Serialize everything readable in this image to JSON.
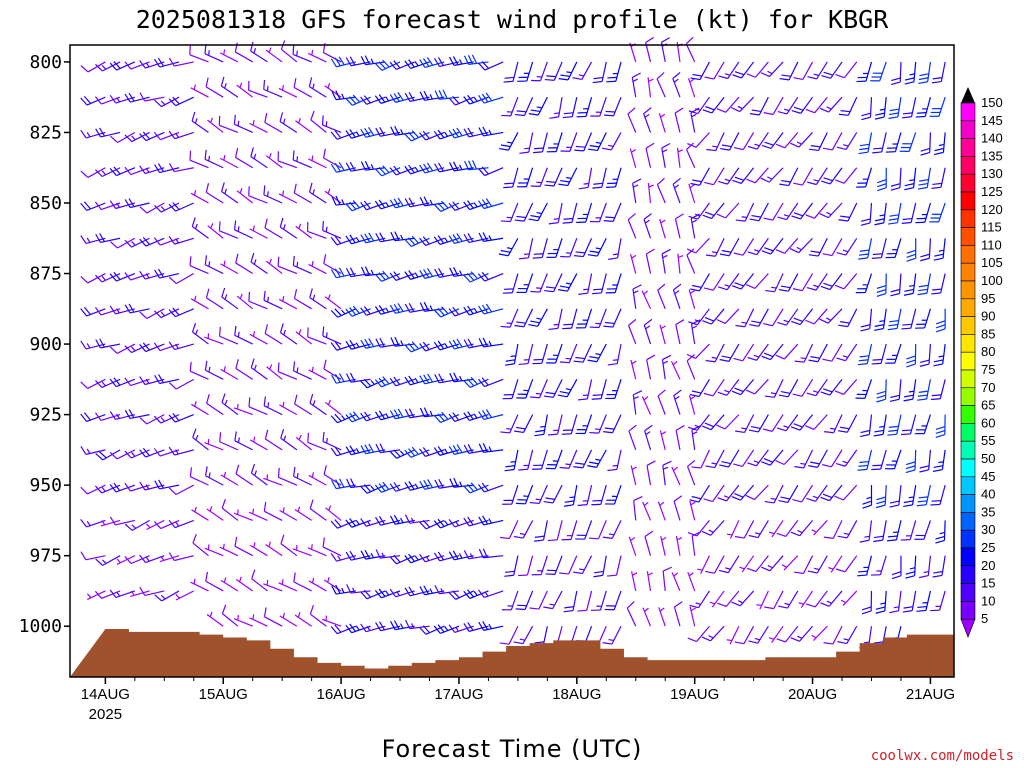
{
  "chart_data": {
    "type": "wind-barb profile",
    "title": "2025081318 GFS forecast wind profile (kt) for KBGR",
    "xlabel": "Forecast Time (UTC)",
    "ylabel": "",
    "credit": "coolwx.com/models",
    "y_axis": {
      "scale": "pressure (hPa), inverted",
      "ylim": [
        1018,
        794
      ],
      "ticks": [
        "800",
        "825",
        "850",
        "875",
        "900",
        "925",
        "950",
        "975",
        "1000"
      ]
    },
    "x_axis": {
      "range_hours": [
        -0.3,
        7.2
      ],
      "ticks": [
        {
          "day": 0,
          "label": "14AUG",
          "sublabel": "2025"
        },
        {
          "day": 1,
          "label": "15AUG",
          "sublabel": ""
        },
        {
          "day": 2,
          "label": "16AUG",
          "sublabel": ""
        },
        {
          "day": 3,
          "label": "17AUG",
          "sublabel": ""
        },
        {
          "day": 4,
          "label": "18AUG",
          "sublabel": ""
        },
        {
          "day": 5,
          "label": "19AUG",
          "sublabel": ""
        },
        {
          "day": 6,
          "label": "20AUG",
          "sublabel": ""
        },
        {
          "day": 7,
          "label": "21AUG",
          "sublabel": ""
        }
      ]
    },
    "colorbar": {
      "unit": "kt",
      "levels": [
        "150",
        "145",
        "140",
        "135",
        "130",
        "125",
        "120",
        "115",
        "110",
        "105",
        "100",
        "95",
        "90",
        "85",
        "80",
        "75",
        "70",
        "65",
        "60",
        "55",
        "50",
        "45",
        "40",
        "35",
        "30",
        "25",
        "20",
        "15",
        "10",
        "5"
      ],
      "colors": [
        "#ff00ff",
        "#f000c8",
        "#ff0096",
        "#ff0064",
        "#ff0032",
        "#ff0000",
        "#ff3200",
        "#ff5000",
        "#ff6e00",
        "#ff8200",
        "#ff9600",
        "#ffaa00",
        "#ffc800",
        "#ffe600",
        "#ffff00",
        "#d2ff00",
        "#96ff00",
        "#32ff00",
        "#00ff64",
        "#00ffb4",
        "#00ffff",
        "#00c8ff",
        "#0096ff",
        "#0064ff",
        "#0032ff",
        "#0000ff",
        "#2800ff",
        "#5000ff",
        "#7800ff",
        "#a000ff"
      ]
    },
    "surface_pressure_hpa": [
      [
        0.0,
        1001
      ],
      [
        0.2,
        1002
      ],
      [
        0.6,
        1002
      ],
      [
        0.8,
        1003
      ],
      [
        1.0,
        1004
      ],
      [
        1.2,
        1005
      ],
      [
        1.4,
        1008
      ],
      [
        1.6,
        1011
      ],
      [
        1.8,
        1013
      ],
      [
        2.0,
        1014
      ],
      [
        2.2,
        1015
      ],
      [
        2.4,
        1014
      ],
      [
        2.6,
        1013
      ],
      [
        2.8,
        1012
      ],
      [
        3.0,
        1011
      ],
      [
        3.2,
        1009
      ],
      [
        3.4,
        1007
      ],
      [
        3.6,
        1006
      ],
      [
        3.8,
        1005
      ],
      [
        4.0,
        1005
      ],
      [
        4.2,
        1008
      ],
      [
        4.4,
        1011
      ],
      [
        4.6,
        1012
      ],
      [
        4.8,
        1012
      ],
      [
        5.0,
        1012
      ],
      [
        5.2,
        1012
      ],
      [
        5.4,
        1012
      ],
      [
        5.6,
        1011
      ],
      [
        5.8,
        1011
      ],
      [
        6.0,
        1011
      ],
      [
        6.2,
        1009
      ],
      [
        6.4,
        1006
      ],
      [
        6.6,
        1004
      ],
      [
        6.8,
        1003
      ],
      [
        7.0,
        1003
      ],
      [
        7.2,
        1003
      ]
    ],
    "wind_regimes": [
      {
        "day_range": [
          0.0,
          0.8
        ],
        "direction_deg": 250,
        "speed_kt": 15
      },
      {
        "day_range": [
          0.8,
          2.1
        ],
        "direction_deg": 300,
        "speed_kt": 10
      },
      {
        "day_range": [
          2.1,
          3.5
        ],
        "direction_deg": 255,
        "speed_kt": 25
      },
      {
        "day_range": [
          3.5,
          4.5
        ],
        "direction_deg": 200,
        "speed_kt": 20
      },
      {
        "day_range": [
          4.5,
          5.1
        ],
        "direction_deg": 345,
        "speed_kt": 10
      },
      {
        "day_range": [
          5.1,
          6.5
        ],
        "direction_deg": 215,
        "speed_kt": 15
      },
      {
        "day_range": [
          6.5,
          7.2
        ],
        "direction_deg": 190,
        "speed_kt": 25
      }
    ]
  }
}
